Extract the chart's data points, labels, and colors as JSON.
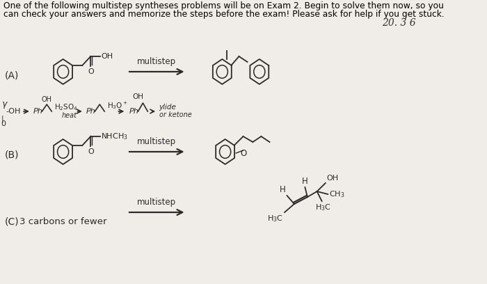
{
  "background_color": "#f0ede8",
  "title_line1": "One of the following multistep syntheses problems will be on Exam 2. Begin to solve them now, so you",
  "title_line2": "can check your answers and memorize the steps before the exam! Please ask for help if you get stuck.",
  "title_fontsize": 8.8,
  "page_number": "20. 3 6",
  "label_A": "(A)",
  "label_B": "(B)",
  "label_C": "(C)",
  "multistep": "multistep",
  "label_C_text": "3 carbons or fewer"
}
